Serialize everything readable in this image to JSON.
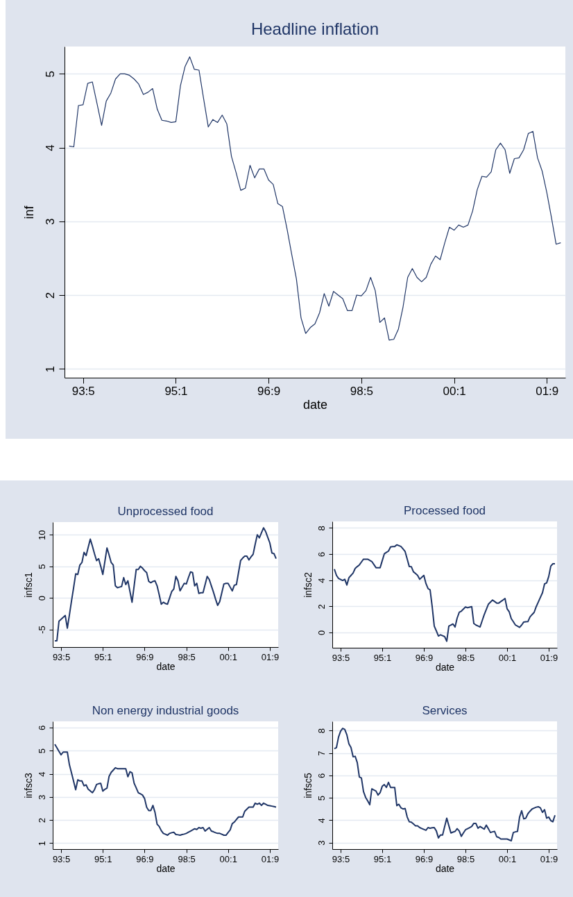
{
  "chart_data": [
    {
      "type": "line",
      "title": "Headline inflation",
      "xlabel": "date",
      "ylabel": "inf",
      "color": "#1f3566",
      "grid": "y",
      "ylim": [
        0.88,
        5.37
      ],
      "yticks": [
        1,
        2,
        3,
        4,
        5
      ],
      "categories": [
        null,
        null,
        null,
        "93:5",
        null,
        null,
        null,
        null,
        null,
        null,
        null,
        null,
        null,
        null,
        null,
        null,
        null,
        null,
        null,
        null,
        null,
        null,
        null,
        "95:1",
        null,
        null,
        null,
        null,
        null,
        null,
        null,
        null,
        null,
        null,
        null,
        null,
        null,
        null,
        null,
        null,
        null,
        null,
        null,
        "96:9",
        null,
        null,
        null,
        null,
        null,
        null,
        null,
        null,
        null,
        null,
        null,
        null,
        null,
        null,
        null,
        null,
        null,
        null,
        null,
        "98:5",
        null,
        null,
        null,
        null,
        null,
        null,
        null,
        null,
        null,
        null,
        null,
        null,
        null,
        null,
        null,
        null,
        null,
        null,
        null,
        "00:1",
        null,
        null,
        null,
        null,
        null,
        null,
        null,
        null,
        null,
        null,
        null,
        null,
        null,
        null,
        null,
        null,
        null,
        null,
        null,
        "01:9",
        null,
        null,
        null
      ],
      "values": [
        4.02,
        4.01,
        4.57,
        4.58,
        4.87,
        4.89,
        4.6,
        4.3,
        4.63,
        4.74,
        4.93,
        5.0,
        5.0,
        4.98,
        4.93,
        4.86,
        4.72,
        4.75,
        4.8,
        4.52,
        4.37,
        4.36,
        4.34,
        4.35,
        4.84,
        5.1,
        5.23,
        5.06,
        5.05,
        4.66,
        4.28,
        4.38,
        4.34,
        4.44,
        4.32,
        3.88,
        3.66,
        3.42,
        3.45,
        3.76,
        3.59,
        3.71,
        3.71,
        3.56,
        3.5,
        3.24,
        3.2,
        2.89,
        2.55,
        2.22,
        1.69,
        1.48,
        1.56,
        1.61,
        1.76,
        2.02,
        1.85,
        2.05,
        2.0,
        1.95,
        1.79,
        1.79,
        2.0,
        1.99,
        2.06,
        2.24,
        2.06,
        1.63,
        1.69,
        1.39,
        1.4,
        1.54,
        1.84,
        2.24,
        2.36,
        2.24,
        2.18,
        2.24,
        2.42,
        2.53,
        2.48,
        2.71,
        2.92,
        2.88,
        2.95,
        2.92,
        2.95,
        3.14,
        3.43,
        3.61,
        3.6,
        3.67,
        3.97,
        4.06,
        3.97,
        3.65,
        3.85,
        3.86,
        3.97,
        4.19,
        4.22,
        3.86,
        3.68,
        3.39,
        3.05,
        2.69,
        2.71
      ]
    },
    {
      "type": "line",
      "title": "Unprocessed food",
      "xlabel": "date",
      "ylabel": "infsc1",
      "color": "#1f3566",
      "grid": "y",
      "ylim": [
        -7.8,
        12
      ],
      "yticks": [
        -5,
        0,
        5,
        10
      ],
      "categories": [
        null,
        null,
        null,
        "93:5",
        null,
        null,
        null,
        null,
        null,
        null,
        null,
        null,
        null,
        null,
        null,
        null,
        null,
        null,
        null,
        null,
        null,
        null,
        null,
        "95:1",
        null,
        null,
        null,
        null,
        null,
        null,
        null,
        null,
        null,
        null,
        null,
        null,
        null,
        null,
        null,
        null,
        null,
        null,
        null,
        "96:9",
        null,
        null,
        null,
        null,
        null,
        null,
        null,
        null,
        null,
        null,
        null,
        null,
        null,
        null,
        null,
        null,
        null,
        null,
        null,
        "98:5",
        null,
        null,
        null,
        null,
        null,
        null,
        null,
        null,
        null,
        null,
        null,
        null,
        null,
        null,
        null,
        null,
        null,
        null,
        null,
        "00:1",
        null,
        null,
        null,
        null,
        null,
        null,
        null,
        null,
        null,
        null,
        null,
        null,
        null,
        null,
        null,
        null,
        null,
        null,
        null,
        "01:9",
        null,
        null,
        null
      ],
      "values": [
        -6.8,
        -6.8,
        -3.7,
        -3.4,
        -3.1,
        -2.8,
        -4.8,
        -2.7,
        -0.5,
        1.6,
        3.8,
        3.7,
        5.2,
        5.6,
        7.2,
        6.7,
        8.0,
        9.3,
        8.2,
        7.0,
        5.9,
        6.2,
        5.0,
        3.7,
        5.8,
        7.9,
        6.8,
        5.6,
        5.2,
        1.9,
        1.6,
        1.7,
        1.8,
        3.2,
        2.1,
        2.7,
        1.0,
        -0.7,
        1.9,
        4.5,
        4.5,
        5.0,
        4.7,
        4.3,
        4.0,
        2.6,
        2.4,
        2.6,
        2.7,
        1.9,
        0.5,
        -1.0,
        -0.7,
        -0.9,
        -1.0,
        0.0,
        1.0,
        1.4,
        3.4,
        2.7,
        1.1,
        1.7,
        2.3,
        2.2,
        3.2,
        4.1,
        4.0,
        1.9,
        2.3,
        0.7,
        0.8,
        0.8,
        2.1,
        3.4,
        2.9,
        1.9,
        0.9,
        -0.2,
        -1.2,
        -0.6,
        0.8,
        2.2,
        2.3,
        2.3,
        1.7,
        1.1,
        2.0,
        2.1,
        4.0,
        5.9,
        6.3,
        6.6,
        6.6,
        6.0,
        6.5,
        6.9,
        8.5,
        10.0,
        9.5,
        10.3,
        11.1,
        10.5,
        9.6,
        8.7,
        7.1,
        7.0,
        6.2
      ]
    },
    {
      "type": "line",
      "title": "Processed food",
      "xlabel": "date",
      "ylabel": "infsc2",
      "color": "#1f3566",
      "grid": "y",
      "ylim": [
        -1.17,
        8.5
      ],
      "yticks": [
        0,
        2,
        4,
        6,
        8
      ],
      "categories": [
        null,
        null,
        null,
        "93:5",
        null,
        null,
        null,
        null,
        null,
        null,
        null,
        null,
        null,
        null,
        null,
        null,
        null,
        null,
        null,
        null,
        null,
        null,
        null,
        "95:1",
        null,
        null,
        null,
        null,
        null,
        null,
        null,
        null,
        null,
        null,
        null,
        null,
        null,
        null,
        null,
        null,
        null,
        null,
        null,
        "96:9",
        null,
        null,
        null,
        null,
        null,
        null,
        null,
        null,
        null,
        null,
        null,
        null,
        null,
        null,
        null,
        null,
        null,
        null,
        null,
        "98:5",
        null,
        null,
        null,
        null,
        null,
        null,
        null,
        null,
        null,
        null,
        null,
        null,
        null,
        null,
        null,
        null,
        null,
        null,
        null,
        "00:1",
        null,
        null,
        null,
        null,
        null,
        null,
        null,
        null,
        null,
        null,
        null,
        null,
        null,
        null,
        null,
        null,
        null,
        null,
        null,
        "01:9",
        null,
        null,
        null
      ],
      "values": [
        4.85,
        4.37,
        4.14,
        4.06,
        3.98,
        4.07,
        3.63,
        4.19,
        4.37,
        4.55,
        4.9,
        5.04,
        5.17,
        5.39,
        5.61,
        5.61,
        5.61,
        5.52,
        5.43,
        5.2,
        4.96,
        4.96,
        4.96,
        5.49,
        6.02,
        6.13,
        6.23,
        6.55,
        6.57,
        6.58,
        6.71,
        6.65,
        6.58,
        6.39,
        6.19,
        5.62,
        5.04,
        5.03,
        4.64,
        4.51,
        4.37,
        4.07,
        4.22,
        4.37,
        3.75,
        3.36,
        3.26,
        1.98,
        0.48,
        0.12,
        -0.27,
        -0.18,
        -0.25,
        -0.32,
        -0.67,
        0.48,
        0.57,
        0.65,
        0.42,
        1.1,
        1.54,
        1.63,
        1.79,
        1.95,
        1.89,
        1.94,
        1.98,
        0.69,
        0.57,
        0.5,
        0.42,
        0.89,
        1.36,
        1.76,
        2.16,
        2.32,
        2.48,
        2.37,
        2.25,
        2.25,
        2.37,
        2.48,
        2.6,
        1.81,
        1.59,
        1.06,
        0.82,
        0.57,
        0.48,
        0.39,
        0.57,
        0.8,
        0.82,
        0.83,
        1.19,
        1.37,
        1.54,
        1.98,
        2.33,
        2.69,
        3.04,
        3.72,
        3.79,
        4.28,
        5.08,
        5.26,
        5.26
      ]
    },
    {
      "type": "line",
      "title": "Non energy industrial goods",
      "xlabel": "date",
      "ylabel": "infsc3",
      "color": "#1f3566",
      "grid": "y",
      "ylim": [
        0.74,
        6.27
      ],
      "yticks": [
        1,
        2,
        3,
        4,
        5,
        6
      ],
      "categories": [
        null,
        null,
        null,
        "93:5",
        null,
        null,
        null,
        null,
        null,
        null,
        null,
        null,
        null,
        null,
        null,
        null,
        null,
        null,
        null,
        null,
        null,
        null,
        null,
        "95:1",
        null,
        null,
        null,
        null,
        null,
        null,
        null,
        null,
        null,
        null,
        null,
        null,
        null,
        null,
        null,
        null,
        null,
        null,
        null,
        "96:9",
        null,
        null,
        null,
        null,
        null,
        null,
        null,
        null,
        null,
        null,
        null,
        null,
        null,
        null,
        null,
        null,
        null,
        null,
        null,
        "98:5",
        null,
        null,
        null,
        null,
        null,
        null,
        null,
        null,
        null,
        null,
        null,
        null,
        null,
        null,
        null,
        null,
        null,
        null,
        null,
        "00:1",
        null,
        null,
        null,
        null,
        null,
        null,
        null,
        null,
        null,
        null,
        null,
        null,
        null,
        null,
        null,
        null,
        null,
        null,
        null,
        "01:9",
        null,
        null,
        null
      ],
      "values": [
        5.28,
        5.13,
        4.97,
        4.82,
        4.94,
        4.94,
        4.94,
        4.39,
        4.04,
        3.68,
        3.31,
        3.74,
        3.69,
        3.69,
        3.48,
        3.52,
        3.33,
        3.26,
        3.18,
        3.31,
        3.54,
        3.57,
        3.59,
        3.25,
        3.33,
        3.38,
        3.89,
        4.06,
        4.16,
        4.26,
        4.22,
        4.22,
        4.22,
        4.22,
        4.22,
        3.87,
        4.09,
        4.04,
        3.59,
        3.39,
        3.18,
        3.13,
        3.08,
        2.93,
        2.55,
        2.41,
        2.41,
        2.63,
        2.33,
        1.82,
        1.72,
        1.54,
        1.42,
        1.38,
        1.34,
        1.42,
        1.45,
        1.47,
        1.37,
        1.36,
        1.34,
        1.37,
        1.39,
        1.42,
        1.47,
        1.52,
        1.57,
        1.62,
        1.59,
        1.67,
        1.64,
        1.67,
        1.52,
        1.6,
        1.67,
        1.52,
        1.49,
        1.45,
        1.42,
        1.42,
        1.38,
        1.34,
        1.34,
        1.46,
        1.57,
        1.84,
        1.91,
        2.02,
        2.13,
        2.13,
        2.13,
        2.38,
        2.47,
        2.56,
        2.56,
        2.56,
        2.73,
        2.68,
        2.73,
        2.63,
        2.73,
        2.68,
        2.63,
        2.62,
        2.6,
        2.58,
        2.56
      ]
    },
    {
      "type": "line",
      "title": "Services",
      "xlabel": "date",
      "ylabel": "infsc5",
      "color": "#1f3566",
      "grid": "y",
      "ylim": [
        2.71,
        8.41
      ],
      "yticks": [
        3,
        4,
        5,
        6,
        7,
        8
      ],
      "categories": [
        null,
        null,
        null,
        "93:5",
        null,
        null,
        null,
        null,
        null,
        null,
        null,
        null,
        null,
        null,
        null,
        null,
        null,
        null,
        null,
        null,
        null,
        null,
        null,
        "95:1",
        null,
        null,
        null,
        null,
        null,
        null,
        null,
        null,
        null,
        null,
        null,
        null,
        null,
        null,
        null,
        null,
        null,
        null,
        null,
        "96:9",
        null,
        null,
        null,
        null,
        null,
        null,
        null,
        null,
        null,
        null,
        null,
        null,
        null,
        null,
        null,
        null,
        null,
        null,
        null,
        "98:5",
        null,
        null,
        null,
        null,
        null,
        null,
        null,
        null,
        null,
        null,
        null,
        null,
        null,
        null,
        null,
        null,
        null,
        null,
        null,
        "00:1",
        null,
        null,
        null,
        null,
        null,
        null,
        null,
        null,
        null,
        null,
        null,
        null,
        null,
        null,
        null,
        null,
        null,
        null,
        null,
        "01:9",
        null,
        null,
        null
      ],
      "values": [
        7.19,
        7.24,
        7.71,
        7.97,
        8.1,
        8.05,
        7.81,
        7.4,
        7.24,
        6.83,
        6.85,
        6.57,
        5.93,
        5.88,
        5.28,
        5.02,
        4.86,
        4.69,
        5.4,
        5.35,
        5.3,
        5.12,
        5.23,
        5.51,
        5.59,
        5.46,
        5.69,
        5.46,
        5.46,
        5.46,
        4.65,
        4.71,
        4.55,
        4.5,
        4.52,
        4.14,
        3.93,
        3.91,
        3.83,
        3.75,
        3.75,
        3.67,
        3.63,
        3.59,
        3.55,
        3.67,
        3.64,
        3.66,
        3.67,
        3.52,
        3.21,
        3.34,
        3.34,
        3.72,
        4.09,
        3.76,
        3.43,
        3.47,
        3.5,
        3.62,
        3.52,
        3.28,
        3.43,
        3.57,
        3.62,
        3.67,
        3.72,
        3.86,
        3.86,
        3.64,
        3.72,
        3.66,
        3.6,
        3.78,
        3.62,
        3.45,
        3.48,
        3.5,
        3.26,
        3.23,
        3.16,
        3.16,
        3.16,
        3.16,
        3.12,
        3.08,
        3.45,
        3.48,
        3.5,
        4.14,
        4.42,
        4.06,
        4.09,
        4.29,
        4.4,
        4.5,
        4.54,
        4.58,
        4.6,
        4.55,
        4.35,
        4.47,
        4.09,
        4.14,
        3.98,
        3.93,
        4.22
      ]
    }
  ]
}
